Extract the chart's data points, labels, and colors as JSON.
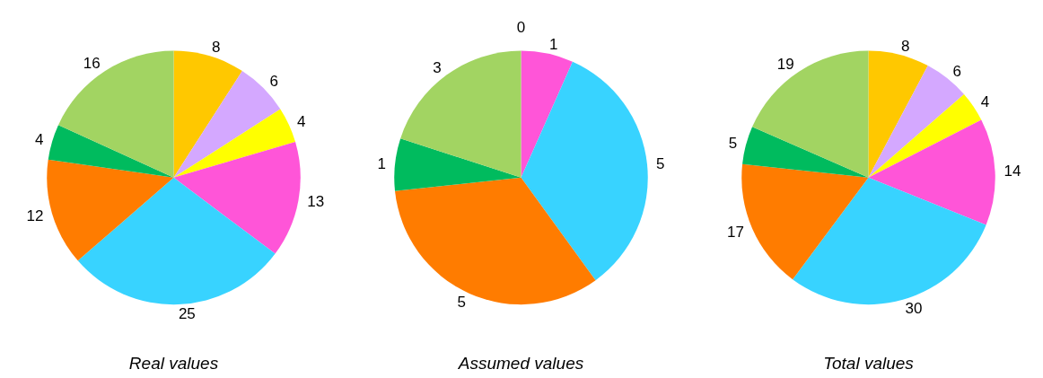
{
  "chart_data": [
    {
      "type": "pie",
      "title": "Real values",
      "categories": [
        null,
        null,
        null,
        null,
        null,
        null,
        null,
        null
      ],
      "values": [
        8,
        6,
        4,
        13,
        25,
        12,
        4,
        16
      ],
      "colors": [
        "#ffc800",
        "#d4a8ff",
        "#ffff00",
        "#ff55d8",
        "#38d3ff",
        "#ff7c00",
        "#00bb5e",
        "#a2d462"
      ],
      "data_labels": true
    },
    {
      "type": "pie",
      "title": "Assumed values",
      "categories": [
        null,
        null,
        null,
        null,
        null
      ],
      "values": [
        1,
        5,
        5,
        1,
        3
      ],
      "colors": [
        "#ff55d8",
        "#38d3ff",
        "#ff7c00",
        "#00bb5e",
        "#a2d462"
      ],
      "data_labels": true,
      "annotations": [
        "0"
      ]
    },
    {
      "type": "pie",
      "title": "Total values",
      "categories": [
        null,
        null,
        null,
        null,
        null,
        null,
        null,
        null
      ],
      "values": [
        8,
        6,
        4,
        14,
        30,
        17,
        5,
        19
      ],
      "colors": [
        "#ffc800",
        "#d4a8ff",
        "#ffff00",
        "#ff55d8",
        "#38d3ff",
        "#ff7c00",
        "#00bb5e",
        "#a2d462"
      ],
      "data_labels": true
    }
  ]
}
